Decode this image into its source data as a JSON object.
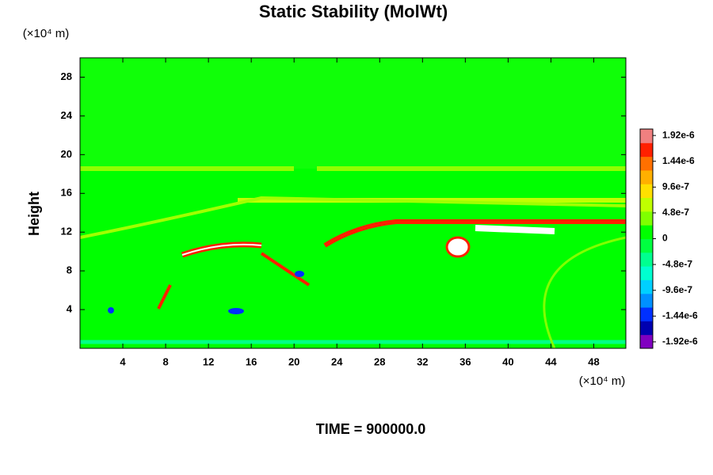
{
  "chart_data": {
    "type": "heatmap",
    "title": "Static Stability (MolWt)",
    "y_label": "Height",
    "y_unit_label": "(×10⁴ m)",
    "x_unit_label": "(×10⁴ m)",
    "annotation": "TIME = 900000.0",
    "xlim": [
      0,
      51
    ],
    "xticks": [
      4,
      8,
      12,
      16,
      20,
      24,
      28,
      32,
      36,
      40,
      44,
      48
    ],
    "ylim": [
      0,
      30
    ],
    "yticks": [
      4,
      8,
      12,
      16,
      20,
      24,
      28
    ],
    "clim": [
      -2.04e-06,
      2.04e-06
    ],
    "cticks": [
      {
        "value": 1.92e-06,
        "label": "1.92e-6"
      },
      {
        "value": 1.44e-06,
        "label": "1.44e-6"
      },
      {
        "value": 9.6e-07,
        "label": "9.6e-7"
      },
      {
        "value": 4.8e-07,
        "label": "4.8e-7"
      },
      0,
      {
        "value": -4.8e-07,
        "label": "-4.8e-7"
      },
      {
        "value": -9.6e-07,
        "label": "-9.6e-7"
      },
      {
        "value": -1.44e-06,
        "label": "-1.44e-6"
      },
      {
        "value": -1.92e-06,
        "label": "-1.92e-6"
      }
    ],
    "colors": [
      "#8000c0",
      "#0000b0",
      "#0030ff",
      "#0090ff",
      "#00d0ff",
      "#00ffd0",
      "#00ff90",
      "#00ff40",
      "#00ff00",
      "#80ff00",
      "#c0ff00",
      "#ffe000",
      "#ffb000",
      "#ff7000",
      "#ff2000",
      "#f08080"
    ]
  }
}
